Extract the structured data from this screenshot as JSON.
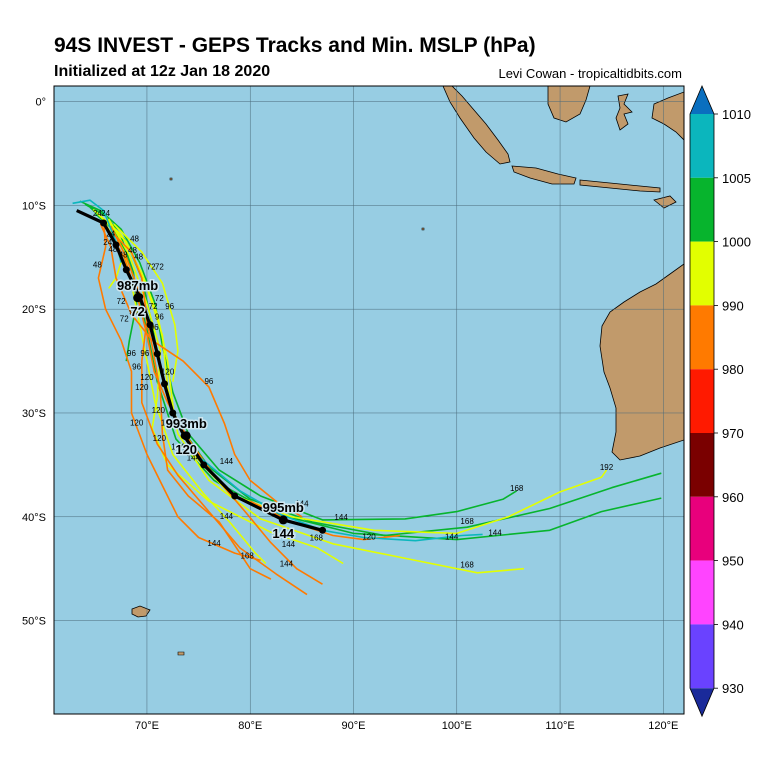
{
  "header": {
    "title": "94S INVEST - GEPS Tracks and Min. MSLP (hPa)",
    "subtitle": "Initialized at 12z Jan 18 2020",
    "credit": "Levi Cowan - tropicaltidbits.com"
  },
  "map": {
    "lon_range": [
      61,
      122
    ],
    "lat_range": [
      -59,
      1.5
    ],
    "lon_ticks": [
      "70°E",
      "80°E",
      "90°E",
      "100°E",
      "110°E",
      "120°E"
    ],
    "lat_ticks": [
      "0°",
      "10°S",
      "20°S",
      "30°S",
      "40°S",
      "50°S"
    ],
    "ocean_color": "#97cde3",
    "land_color": "#c19a6b",
    "grid": true
  },
  "colorbar": {
    "levels": [
      "1010",
      "1005",
      "1000",
      "990",
      "980",
      "970",
      "960",
      "950",
      "940",
      "930"
    ],
    "colors": [
      "#0a6fbf",
      "#0bb6bd",
      "#07b42d",
      "#e2ff00",
      "#ff7a00",
      "#ff1a00",
      "#7a0000",
      "#e8007c",
      "#ff44ff",
      "#6a42ff",
      "#1a2a9a"
    ]
  },
  "mean_track": {
    "color": "#000000",
    "points": [
      [
        63.2,
        -10.5
      ],
      [
        65.8,
        -11.7
      ],
      [
        67.0,
        -13.8
      ],
      [
        68.0,
        -16.2
      ],
      [
        69.3,
        -18.8
      ],
      [
        70.3,
        -21.5
      ],
      [
        71.0,
        -24.3
      ],
      [
        71.7,
        -27.2
      ],
      [
        72.5,
        -30.0
      ],
      [
        73.6,
        -32.2
      ],
      [
        75.5,
        -35.0
      ],
      [
        78.5,
        -38.0
      ],
      [
        83.2,
        -40.3
      ],
      [
        87.0,
        -41.3
      ]
    ],
    "labels": [
      {
        "hour": "72",
        "mslp": "987mb",
        "lon": 69.1,
        "lat": -18.9
      },
      {
        "hour": "120",
        "mslp": "993mb",
        "lon": 73.8,
        "lat": -32.2
      },
      {
        "hour": "144",
        "mslp": "995mb",
        "lon": 83.2,
        "lat": -40.3
      }
    ]
  },
  "member_tracks": [
    {
      "color": "#07b42d",
      "points": [
        [
          63.5,
          -9.6
        ],
        [
          65.5,
          -10.5
        ],
        [
          67.5,
          -12.3
        ],
        [
          69.3,
          -15.5
        ],
        [
          70.8,
          -19.5
        ],
        [
          71.5,
          -23.5
        ],
        [
          72.5,
          -28.0
        ],
        [
          74.0,
          -32.0
        ],
        [
          77.0,
          -35.5
        ],
        [
          81.0,
          -38.0
        ],
        [
          87.0,
          -40.3
        ],
        [
          95.0,
          -40.2
        ],
        [
          100.0,
          -39.5
        ],
        [
          104.5,
          -38.3
        ],
        [
          105.8,
          -37.5
        ]
      ]
    },
    {
      "color": "#07b42d",
      "points": [
        [
          64.0,
          -9.9
        ],
        [
          66.0,
          -11.0
        ],
        [
          68.0,
          -13.5
        ],
        [
          69.5,
          -17.0
        ],
        [
          70.5,
          -21.5
        ],
        [
          71.3,
          -26.0
        ],
        [
          73.0,
          -31.0
        ],
        [
          76.0,
          -35.2
        ],
        [
          80.0,
          -38.3
        ],
        [
          86.0,
          -40.5
        ],
        [
          93.0,
          -41.8
        ],
        [
          101.0,
          -41.0
        ],
        [
          109.0,
          -39.2
        ],
        [
          115.0,
          -37.2
        ],
        [
          119.8,
          -35.8
        ]
      ]
    },
    {
      "color": "#07b42d",
      "points": [
        [
          64.5,
          -10.2
        ],
        [
          66.5,
          -12.0
        ],
        [
          68.0,
          -14.5
        ],
        [
          69.0,
          -18.0
        ],
        [
          70.0,
          -22.0
        ],
        [
          71.0,
          -27.0
        ],
        [
          72.8,
          -32.5
        ],
        [
          76.5,
          -36.5
        ],
        [
          82.0,
          -39.6
        ],
        [
          90.0,
          -41.6
        ],
        [
          100.0,
          -42.2
        ],
        [
          109.0,
          -41.3
        ],
        [
          114.0,
          -39.5
        ],
        [
          119.8,
          -38.2
        ]
      ]
    },
    {
      "color": "#07b42d",
      "points": [
        [
          65.0,
          -10.8
        ],
        [
          67.5,
          -13.0
        ],
        [
          68.7,
          -16.5
        ],
        [
          69.0,
          -19.5
        ],
        [
          68.3,
          -23.0
        ],
        [
          68.0,
          -25.0
        ]
      ]
    },
    {
      "color": "#e2ff00",
      "points": [
        [
          64.8,
          -10.4
        ],
        [
          67.5,
          -12.8
        ],
        [
          69.5,
          -16.5
        ],
        [
          71.0,
          -20.5
        ],
        [
          72.0,
          -25.0
        ],
        [
          72.6,
          -30.0
        ],
        [
          74.5,
          -34.0
        ],
        [
          78.0,
          -37.8
        ],
        [
          84.0,
          -40.0
        ],
        [
          92.0,
          -41.3
        ],
        [
          100.0,
          -41.6
        ],
        [
          105.0,
          -40.0
        ],
        [
          110.0,
          -37.6
        ],
        [
          114.0,
          -36.2
        ],
        [
          114.5,
          -35.5
        ]
      ]
    },
    {
      "color": "#e2ff00",
      "points": [
        [
          65.2,
          -10.8
        ],
        [
          68.0,
          -13.5
        ],
        [
          70.0,
          -18.0
        ],
        [
          71.5,
          -22.5
        ],
        [
          72.0,
          -27.5
        ],
        [
          73.0,
          -32.0
        ],
        [
          76.0,
          -36.5
        ],
        [
          81.0,
          -40.2
        ],
        [
          88.0,
          -42.6
        ],
        [
          96.0,
          -44.2
        ],
        [
          102.0,
          -45.4
        ],
        [
          106.5,
          -45.0
        ]
      ]
    },
    {
      "color": "#e2ff00",
      "points": [
        [
          66.0,
          -11.0
        ],
        [
          67.8,
          -14.5
        ],
        [
          68.8,
          -19.0
        ],
        [
          69.8,
          -24.0
        ],
        [
          70.8,
          -29.0
        ],
        [
          72.5,
          -34.0
        ],
        [
          75.5,
          -37.8
        ],
        [
          78.0,
          -40.5
        ],
        [
          80.5,
          -43.5
        ],
        [
          81.5,
          -44.5
        ]
      ]
    },
    {
      "color": "#e2ff00",
      "points": [
        [
          66.3,
          -11.3
        ],
        [
          68.3,
          -14.8
        ],
        [
          70.0,
          -19.5
        ],
        [
          71.3,
          -24.0
        ],
        [
          71.0,
          -28.5
        ],
        [
          70.5,
          -31.5
        ],
        [
          72.0,
          -35.0
        ],
        [
          76.0,
          -38.5
        ],
        [
          82.0,
          -41.5
        ],
        [
          86.5,
          -43.0
        ],
        [
          89.0,
          -44.5
        ]
      ]
    },
    {
      "color": "#e2ff00",
      "points": [
        [
          66.8,
          -11.8
        ],
        [
          69.5,
          -14.5
        ],
        [
          71.5,
          -17.5
        ],
        [
          72.7,
          -21.5
        ],
        [
          73.0,
          -24.0
        ],
        [
          72.5,
          -27.0
        ]
      ]
    },
    {
      "color": "#e2ff00",
      "points": [
        [
          65.8,
          -11.5
        ],
        [
          67.0,
          -13.5
        ],
        [
          67.5,
          -15.5
        ],
        [
          67.0,
          -17.0
        ],
        [
          66.3,
          -18.0
        ]
      ]
    },
    {
      "color": "#ff7a00",
      "points": [
        [
          65.5,
          -11.8
        ],
        [
          66.5,
          -14.0
        ],
        [
          67.0,
          -17.0
        ],
        [
          68.5,
          -20.5
        ],
        [
          70.5,
          -23.0
        ],
        [
          73.5,
          -25.0
        ],
        [
          76.0,
          -27.5
        ],
        [
          77.5,
          -31.0
        ],
        [
          78.5,
          -34.0
        ],
        [
          80.0,
          -36.5
        ],
        [
          82.5,
          -38.5
        ],
        [
          85.0,
          -40.0
        ]
      ]
    },
    {
      "color": "#ff7a00",
      "points": [
        [
          66.0,
          -12.0
        ],
        [
          67.8,
          -15.0
        ],
        [
          69.0,
          -18.5
        ],
        [
          70.0,
          -22.5
        ],
        [
          70.7,
          -26.0
        ],
        [
          72.0,
          -29.0
        ],
        [
          74.0,
          -32.5
        ],
        [
          76.5,
          -36.0
        ],
        [
          79.5,
          -39.5
        ],
        [
          82.0,
          -42.5
        ],
        [
          84.5,
          -45.0
        ],
        [
          87.0,
          -46.5
        ]
      ]
    },
    {
      "color": "#ff7a00",
      "points": [
        [
          66.5,
          -12.5
        ],
        [
          68.5,
          -14.5
        ],
        [
          69.5,
          -17.0
        ],
        [
          70.0,
          -21.0
        ],
        [
          69.5,
          -25.0
        ],
        [
          69.5,
          -29.0
        ],
        [
          71.0,
          -33.0
        ],
        [
          73.0,
          -36.0
        ],
        [
          76.0,
          -39.5
        ],
        [
          79.0,
          -43.0
        ],
        [
          82.5,
          -45.5
        ],
        [
          85.5,
          -47.5
        ]
      ]
    },
    {
      "color": "#ff7a00",
      "points": [
        [
          65.8,
          -11.5
        ],
        [
          66.0,
          -14.0
        ],
        [
          65.3,
          -17.0
        ],
        [
          66.0,
          -20.0
        ],
        [
          67.5,
          -23.0
        ],
        [
          68.5,
          -26.0
        ],
        [
          68.5,
          -30.0
        ],
        [
          70.0,
          -34.0
        ],
        [
          71.5,
          -37.0
        ],
        [
          73.0,
          -40.0
        ],
        [
          75.0,
          -42.0
        ],
        [
          78.5,
          -43.5
        ],
        [
          81.0,
          -44.2
        ]
      ]
    },
    {
      "color": "#ff7a00",
      "points": [
        [
          66.5,
          -12.0
        ],
        [
          68.0,
          -15.0
        ],
        [
          69.5,
          -19.0
        ],
        [
          70.5,
          -23.5
        ],
        [
          71.3,
          -28.0
        ],
        [
          71.5,
          -32.0
        ],
        [
          72.0,
          -35.5
        ],
        [
          74.0,
          -38.0
        ],
        [
          77.0,
          -40.5
        ],
        [
          79.0,
          -43.5
        ],
        [
          80.0,
          -45.0
        ],
        [
          82.0,
          -46.0
        ]
      ]
    },
    {
      "color": "#ff7a00",
      "points": [
        [
          80.0,
          -38.5
        ],
        [
          84.0,
          -40.5
        ],
        [
          88.0,
          -41.8
        ],
        [
          91.0,
          -42.2
        ],
        [
          94.5,
          -41.8
        ]
      ]
    },
    {
      "color": "#0bb6bd",
      "points": [
        [
          62.8,
          -9.8
        ],
        [
          64.5,
          -9.5
        ],
        [
          65.8,
          -10.5
        ],
        [
          66.2,
          -11.5
        ],
        [
          67.0,
          -13.5
        ],
        [
          67.5,
          -15.5
        ]
      ]
    },
    {
      "color": "#0bb6bd",
      "points": [
        [
          73.5,
          -33.0
        ],
        [
          76.0,
          -35.0
        ],
        [
          79.0,
          -37.5
        ],
        [
          83.0,
          -39.8
        ],
        [
          87.0,
          -41.3
        ],
        [
          91.0,
          -42.0
        ],
        [
          96.0,
          -42.3
        ],
        [
          100.5,
          -41.8
        ],
        [
          102.5,
          -41.7
        ]
      ]
    }
  ],
  "hour_labels": [
    {
      "text": "24",
      "lon": 65.2,
      "lat": -11.0
    },
    {
      "text": "24",
      "lon": 66.0,
      "lat": -11.0
    },
    {
      "text": "24",
      "lon": 66.5,
      "lat": -13.0
    },
    {
      "text": "24",
      "lon": 66.2,
      "lat": -13.8
    },
    {
      "text": "48",
      "lon": 65.2,
      "lat": -16.0
    },
    {
      "text": "48",
      "lon": 66.7,
      "lat": -14.5
    },
    {
      "text": "48",
      "lon": 67.7,
      "lat": -15.0
    },
    {
      "text": "48",
      "lon": 68.8,
      "lat": -13.5
    },
    {
      "text": "48",
      "lon": 68.6,
      "lat": -14.6
    },
    {
      "text": "48",
      "lon": 69.2,
      "lat": -15.2
    },
    {
      "text": "72",
      "lon": 70.4,
      "lat": -16.2
    },
    {
      "text": "72",
      "lon": 71.2,
      "lat": -16.2
    },
    {
      "text": "72",
      "lon": 67.5,
      "lat": -19.5
    },
    {
      "text": "72",
      "lon": 70.6,
      "lat": -20.0
    },
    {
      "text": "72",
      "lon": 71.2,
      "lat": -19.2
    },
    {
      "text": "72",
      "lon": 67.8,
      "lat": -21.2
    },
    {
      "text": "96",
      "lon": 68.7,
      "lat": -20.5
    },
    {
      "text": "96",
      "lon": 70.7,
      "lat": -22.0
    },
    {
      "text": "96",
      "lon": 71.2,
      "lat": -21.0
    },
    {
      "text": "96",
      "lon": 72.2,
      "lat": -20.0
    },
    {
      "text": "96",
      "lon": 68.5,
      "lat": -24.5
    },
    {
      "text": "96",
      "lon": 69.8,
      "lat": -24.5
    },
    {
      "text": "96",
      "lon": 69.0,
      "lat": -25.8
    },
    {
      "text": "96",
      "lon": 76.0,
      "lat": -27.2
    },
    {
      "text": "120",
      "lon": 70.0,
      "lat": -26.8
    },
    {
      "text": "120",
      "lon": 69.5,
      "lat": -27.8
    },
    {
      "text": "120",
      "lon": 72.0,
      "lat": -26.3
    },
    {
      "text": "120",
      "lon": 69.0,
      "lat": -31.2
    },
    {
      "text": "120",
      "lon": 71.1,
      "lat": -30.0
    },
    {
      "text": "120",
      "lon": 72.0,
      "lat": -31.2
    },
    {
      "text": "120",
      "lon": 71.2,
      "lat": -32.7
    },
    {
      "text": "120",
      "lon": 91.5,
      "lat": -42.2
    },
    {
      "text": "144",
      "lon": 73.0,
      "lat": -33.5
    },
    {
      "text": "144",
      "lon": 74.5,
      "lat": -34.6
    },
    {
      "text": "144",
      "lon": 77.7,
      "lat": -34.9
    },
    {
      "text": "144",
      "lon": 77.7,
      "lat": -40.2
    },
    {
      "text": "144",
      "lon": 76.5,
      "lat": -42.8
    },
    {
      "text": "144",
      "lon": 88.8,
      "lat": -40.3
    },
    {
      "text": "144",
      "lon": 83.7,
      "lat": -42.9
    },
    {
      "text": "144",
      "lon": 83.5,
      "lat": -44.8
    },
    {
      "text": "144",
      "lon": 99.5,
      "lat": -42.2
    },
    {
      "text": "144",
      "lon": 103.7,
      "lat": -41.8
    },
    {
      "text": "144",
      "lon": 85.0,
      "lat": -39.0
    },
    {
      "text": "168",
      "lon": 79.7,
      "lat": -44.0
    },
    {
      "text": "168",
      "lon": 86.4,
      "lat": -42.3
    },
    {
      "text": "168",
      "lon": 101.0,
      "lat": -40.7
    },
    {
      "text": "168",
      "lon": 105.8,
      "lat": -37.5
    },
    {
      "text": "168",
      "lon": 101.0,
      "lat": -44.9
    },
    {
      "text": "192",
      "lon": 114.5,
      "lat": -35.5
    }
  ]
}
